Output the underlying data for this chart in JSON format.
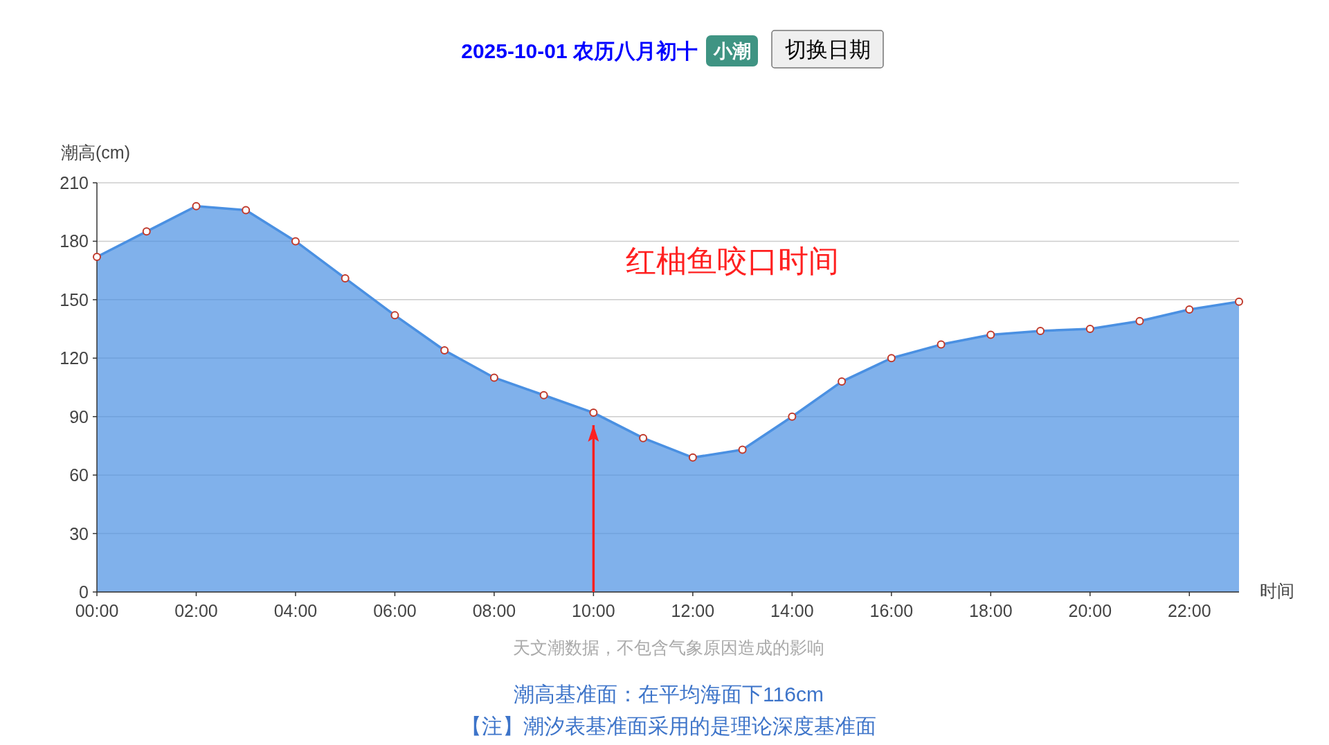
{
  "chart_data": {
    "type": "area",
    "title": "2025-10-01 农历八月初十",
    "subtitle": "小潮",
    "xlabel": "时间",
    "ylabel": "潮高(cm)",
    "categories": [
      "00:00",
      null,
      "02:00",
      null,
      "04:00",
      null,
      "06:00",
      null,
      "08:00",
      null,
      "10:00",
      null,
      "12:00",
      null,
      "14:00",
      null,
      "16:00",
      null,
      "18:00",
      null,
      "20:00",
      null,
      "22:00",
      null
    ],
    "series": [
      {
        "color": "#4a90e2",
        "values": [
          172,
          185,
          198,
          196,
          180,
          161,
          142,
          124,
          110,
          101,
          92,
          79,
          69,
          73,
          90,
          108,
          120,
          127,
          132,
          134,
          135,
          139,
          145,
          149
        ]
      }
    ],
    "ylim": [
      0,
      210
    ],
    "yticks": [
      0,
      30,
      60,
      90,
      120,
      150,
      180,
      210
    ],
    "grid": "y",
    "marker": "circle",
    "ref_lines": [
      {
        "axis": "x",
        "value": "10:00",
        "label": "红柚鱼咬口时间",
        "color": "#ff2020"
      }
    ],
    "annotations": [
      "切换日期",
      "天文潮数据，不包含气象原因造成的影响",
      "潮高基准面：在平均海面下116cm",
      "【注】潮汐表基准面采用的是理论深度基准面"
    ]
  }
}
